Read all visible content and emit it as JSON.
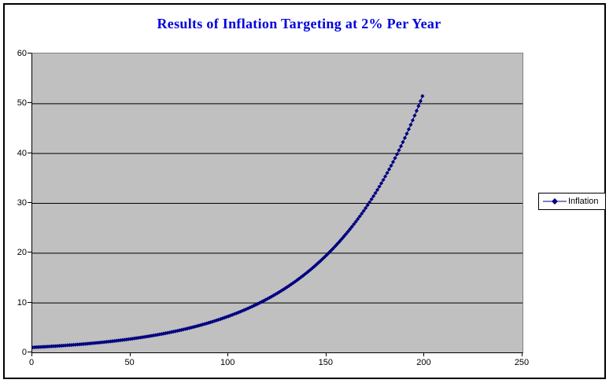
{
  "window": {
    "background": "#FFFFFF",
    "frame_border_color": "#000000"
  },
  "chart_data": {
    "type": "line",
    "title": "Results of Inflation Targeting at 2% Per Year",
    "title_color": "#0000DD",
    "xlabel": "",
    "ylabel": "",
    "xlim": [
      0,
      250
    ],
    "ylim": [
      0,
      60
    ],
    "x_ticks": [
      0,
      50,
      100,
      150,
      200,
      250
    ],
    "y_ticks": [
      0,
      10,
      20,
      30,
      40,
      50,
      60
    ],
    "grid": "horizontal",
    "gridline_color": "#000000",
    "plot_bg": "#C0C0C0",
    "plot_border_color": "#808080",
    "axis_color": "#000000",
    "legend_position": "right",
    "series": [
      {
        "name": "Inflation",
        "color": "#000080",
        "marker": "diamond",
        "line_width": 1,
        "x_start": 0,
        "x_step": 1,
        "x_count": 200,
        "y_initial": 1.0,
        "y_growth_per_step": 1.02,
        "formula": "y[n] = 1.02^n, n = 0..199",
        "key_points": [
          [
            0,
            1.0
          ],
          [
            10,
            1.22
          ],
          [
            20,
            1.49
          ],
          [
            30,
            1.81
          ],
          [
            40,
            2.21
          ],
          [
            50,
            2.69
          ],
          [
            60,
            3.28
          ],
          [
            70,
            4.0
          ],
          [
            80,
            4.88
          ],
          [
            90,
            5.94
          ],
          [
            100,
            7.24
          ],
          [
            110,
            8.83
          ],
          [
            120,
            10.77
          ],
          [
            130,
            13.12
          ],
          [
            140,
            16.0
          ],
          [
            150,
            19.5
          ],
          [
            160,
            23.77
          ],
          [
            170,
            28.98
          ],
          [
            180,
            35.32
          ],
          [
            190,
            43.06
          ],
          [
            199,
            51.45
          ]
        ]
      }
    ]
  },
  "legend": {
    "label": "Inflation"
  }
}
